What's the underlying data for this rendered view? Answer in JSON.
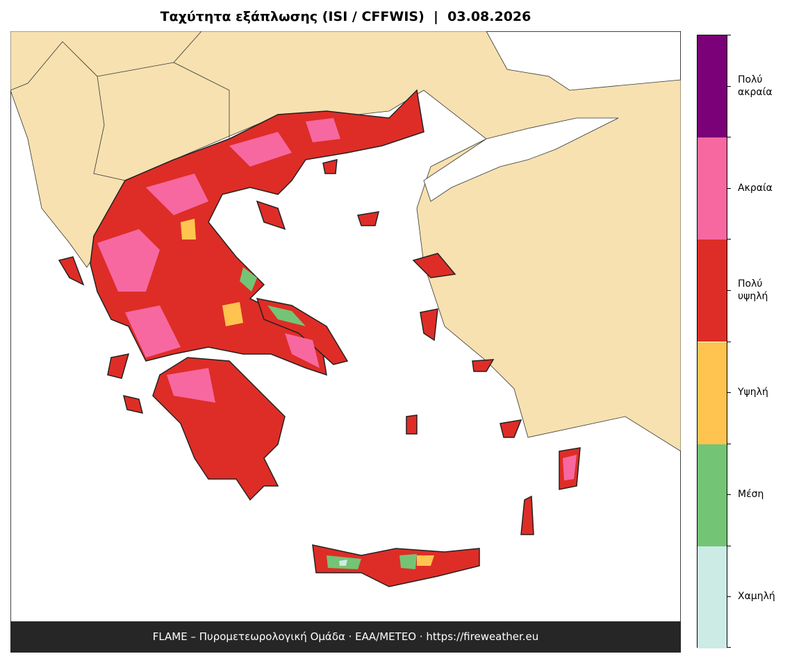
{
  "title": "Ταχύτητα εξάπλωσης (ISI / CFFWIS)  |  03.08.2026",
  "footer": "FLAME – Πυρομετεωρολογική Ομάδα · ΕΑΑ/METEO · https://fireweather.eu",
  "legend": {
    "items": [
      {
        "label": "Πολύ ακραία",
        "color": "#7a0177"
      },
      {
        "label": "Ακραία",
        "color": "#f768a1"
      },
      {
        "label": "Πολύ υψηλή",
        "color": "#de2d26"
      },
      {
        "label": "Υψηλή",
        "color": "#fec44f"
      },
      {
        "label": "Μέση",
        "color": "#74c476"
      },
      {
        "label": "Χαμηλή",
        "color": "#ccebe5"
      }
    ]
  }
}
